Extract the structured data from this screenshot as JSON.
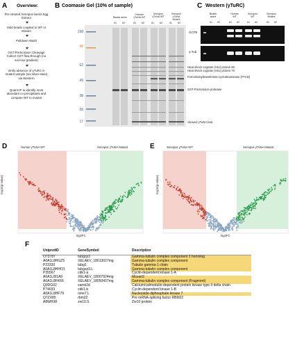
{
  "panels": {
    "A": {
      "label": "A",
      "title": "Overview:",
      "steps": [
        "Pre-cleared Xenopus laevis Egg Extract",
        "Hold beads coupled to WT or Mutant",
        "Pulldown Wash",
        "GST-PreScission Cleavage Collect GST flow-through (no sucrose gradient)",
        "Verify absence of γTuRC in mutant sample (via silver-stain) via Western",
        "Quant-IP to identify most abundant co-precipitants and compare WT to mutant"
      ]
    },
    "B": {
      "label": "B",
      "title": "Coomasie Gel (10% of sample)",
      "ladder": [
        "198",
        "98",
        "62",
        "49",
        "38",
        "28",
        "17"
      ],
      "lane_groups": [
        {
          "name": "Beads alone",
          "reps": [
            "#1",
            "#2"
          ]
        },
        {
          "name": "Human γTuNA WT",
          "reps": [
            "#1",
            "#2"
          ]
        },
        {
          "name": "Xenopus γTuNA WT",
          "reps": [
            "#1",
            "#2"
          ]
        },
        {
          "name": "Xenopus γTuNA Mutant",
          "reps": [
            "#1",
            "#2"
          ]
        }
      ],
      "annotations": [
        "Heat shock cognate (Hsc) protein 90",
        "Heat shock cognate (Hsc) protein 70",
        "Formimidoyltransferase-cyclodeaminase (FTCD)",
        "GST-PreScission protease",
        "cleaved γTuNA bait"
      ]
    },
    "C": {
      "label": "C",
      "title": "Western (γTuRC)",
      "lane_groups": [
        {
          "name": "Beads alone",
          "reps": [
            "#1",
            "#2"
          ]
        },
        {
          "name": "Human WT",
          "reps": [
            "#1",
            "#2"
          ]
        },
        {
          "name": "Xenopus WT",
          "reps": [
            "#1",
            "#2"
          ]
        },
        {
          "name": "Xenopus Mutant",
          "reps": [
            "#1",
            "#2"
          ]
        }
      ],
      "blots": [
        "GCP5",
        "γ-Tub"
      ]
    },
    "D": {
      "label": "D",
      "left_label": "Human γTuNA WT",
      "right_label": "Xenopus γTuNA Mutant",
      "xlabel": "log2FC",
      "ylabel": "-log10(p-value)"
    },
    "E": {
      "label": "E",
      "left_label": "Xenopus γTuNA WT",
      "right_label": "Xenopus γTuNA Mutant",
      "xlabel": "log2FC",
      "ylabel": "-log10(p-value)"
    },
    "F": {
      "label": "F",
      "headers": [
        "UniprotID",
        "GeneSymbol",
        "Description"
      ],
      "rows": [
        {
          "id": "O73787",
          "gene": "tubgcp3",
          "desc": "Gamma-tubulin complex component 3 homolog",
          "hl": true
        },
        {
          "id": "A0A1L8HGZ5",
          "gene": "XELAEV_18013027mg",
          "desc": "Gamma-tubulin complex component",
          "hl": true
        },
        {
          "id": "P23330",
          "gene": "tubg1",
          "desc": "Tubulin gamma-1 chain",
          "hl": true
        },
        {
          "id": "A0A1L8HHO1",
          "gene": "tubgcp3.L",
          "desc": "Gamma-tubulin complex component",
          "hl": true
        },
        {
          "id": "P35567",
          "gene": "cdk1-a",
          "desc": "Cyclin-dependent kinase 1-A",
          "hl": false
        },
        {
          "id": "A0A1L8I1A9",
          "gene": "XELAEV_18007924mg",
          "desc": "Mozart2",
          "hl": true
        },
        {
          "id": "A0A1L8FK66",
          "gene": "XELAEV_18050437mg",
          "desc": "Gamma-tubulin complex component (Fragment)",
          "hl": true
        },
        {
          "id": "Q9DG02",
          "gene": "camk2d",
          "desc": "Calcium/calmodulin-dependent protein kinase type II delta chain",
          "hl": false
        },
        {
          "id": "P74033",
          "gene": "cdk1-b",
          "desc": "Cyclin-dependent kinase 1-B",
          "hl": false
        },
        {
          "id": "A0A1L8HF79",
          "gene": "nme7.L",
          "desc": "Nucleoside diphosphate kinase 7",
          "hl": true
        },
        {
          "id": "Q7ZX85",
          "gene": "rbm22",
          "desc": "Pre mRNA-splicing factor RBM22",
          "hl": false
        },
        {
          "id": "A8WH38",
          "gene": "zw10.S",
          "desc": "Zw10 protein",
          "hl": false
        }
      ]
    }
  },
  "colors": {
    "red_zone": "#f6d2cc",
    "green_zone": "#d6f0dc",
    "highlight": "#f6d878",
    "ladder": "#3464b4",
    "points": "#8aa5c2",
    "red_points": "#c0392b",
    "green_points": "#2e9b4f"
  }
}
